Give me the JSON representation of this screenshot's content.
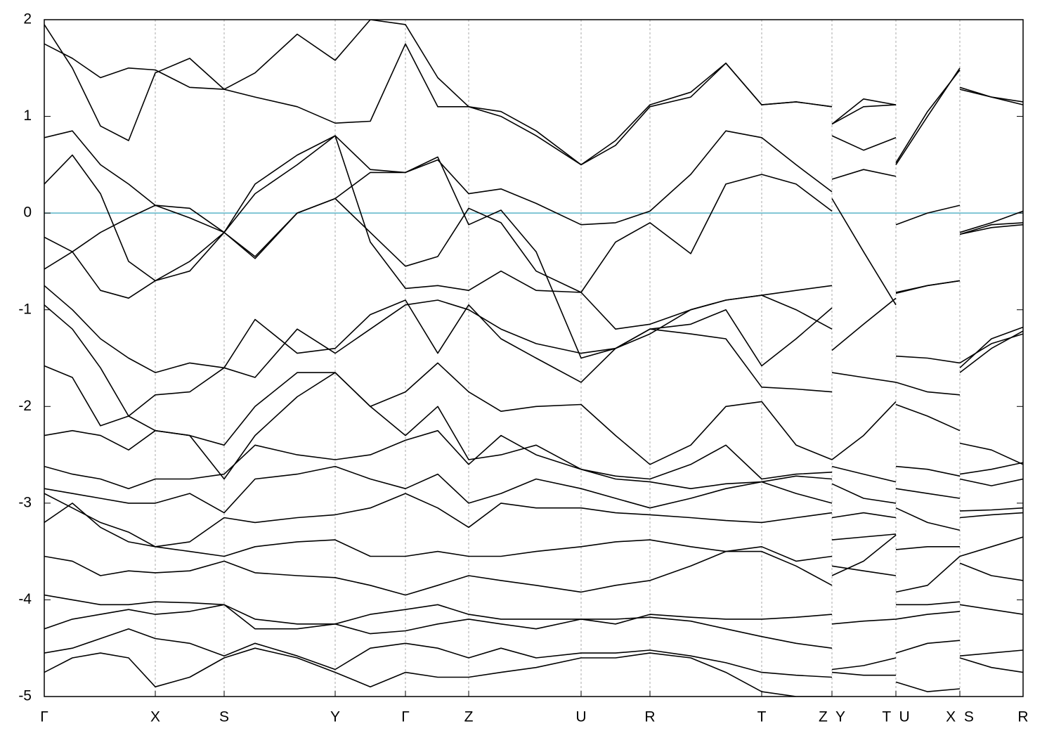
{
  "chart_data": {
    "type": "line",
    "line_color": "#000000",
    "fermi_level": 0,
    "fermi_color": "#5ab4c8",
    "xlim": [
      0,
      1393
    ],
    "ylim": [
      -5,
      2
    ],
    "yticks": [
      -5,
      -4,
      -3,
      -2,
      -1,
      0,
      1,
      2
    ],
    "xticks": [
      {
        "value": 0,
        "label": "Γ"
      },
      {
        "value": 158,
        "label": "X"
      },
      {
        "value": 256,
        "label": "S"
      },
      {
        "value": 414,
        "label": "Y"
      },
      {
        "value": 514,
        "label": "Γ"
      },
      {
        "value": 604,
        "label": "Z"
      },
      {
        "value": 764,
        "label": "U"
      },
      {
        "value": 862,
        "label": "R"
      },
      {
        "value": 1021,
        "label": "T"
      },
      {
        "value": 1121,
        "label": "Z  Y"
      },
      {
        "value": 1212,
        "label": "T  U"
      },
      {
        "value": 1303,
        "label": "X  S"
      },
      {
        "value": 1393,
        "label": "R"
      }
    ],
    "grid": true,
    "x": [
      0,
      40,
      80,
      120,
      158,
      207,
      256,
      300,
      360,
      414,
      464,
      514,
      560,
      604,
      650,
      700,
      764,
      813,
      862,
      920,
      970,
      1021,
      1070,
      1121,
      1121,
      1121,
      1166,
      1212,
      1212,
      1212,
      1257,
      1303,
      1303,
      1303,
      1348,
      1393
    ],
    "series": [
      {
        "values": [
          1.95,
          1.5,
          0.9,
          0.75,
          1.45,
          1.6,
          1.28,
          1.2,
          1.1,
          0.93,
          0.95,
          1.75,
          1.1,
          1.1,
          1.05,
          0.85,
          0.5,
          0.75,
          1.12,
          1.25,
          1.55,
          1.12,
          1.15,
          1.1,
          null,
          0.92,
          1.18,
          1.12,
          null,
          0.5,
          1.0,
          1.5,
          null,
          1.28,
          1.2,
          1.15
        ]
      },
      {
        "values": [
          1.75,
          1.6,
          1.4,
          1.5,
          1.48,
          1.3,
          1.28,
          1.45,
          1.85,
          1.58,
          2.0,
          1.95,
          1.4,
          1.1,
          1.0,
          0.8,
          0.5,
          0.7,
          1.1,
          1.2,
          1.55,
          1.12,
          1.15,
          1.1,
          null,
          0.92,
          1.1,
          1.12,
          null,
          0.52,
          1.05,
          1.48,
          null,
          1.3,
          1.2,
          1.12
        ]
      },
      {
        "values": [
          0.78,
          0.85,
          0.5,
          0.3,
          0.08,
          -0.05,
          -0.2,
          0.2,
          0.5,
          0.8,
          0.45,
          0.42,
          0.55,
          0.2,
          0.25,
          0.1,
          -0.12,
          -0.1,
          0.02,
          0.4,
          0.85,
          0.78,
          0.5,
          0.22,
          null,
          0.8,
          0.65,
          0.78,
          null,
          -0.12,
          0.0,
          0.08,
          null,
          -0.2,
          -0.1,
          0.02
        ]
      },
      {
        "values": [
          -0.58,
          -0.4,
          -0.2,
          -0.05,
          0.08,
          0.05,
          -0.2,
          -0.47,
          0.0,
          0.15,
          -0.2,
          -0.55,
          -0.45,
          0.05,
          -0.1,
          -0.6,
          -0.82,
          -0.3,
          -0.1,
          -0.42,
          0.3,
          0.4,
          0.3,
          0.02,
          null,
          0.15,
          -0.4,
          -0.95,
          null,
          -0.82,
          -0.75,
          -0.7,
          null,
          -0.22,
          -0.15,
          -0.12
        ]
      },
      {
        "values": [
          0.3,
          0.6,
          0.2,
          -0.5,
          -0.7,
          -0.5,
          -0.2,
          0.3,
          0.6,
          0.8,
          -0.3,
          -0.78,
          -0.75,
          -0.8,
          -0.6,
          -0.8,
          -0.82,
          -1.2,
          -1.15,
          -1.0,
          -0.9,
          -0.85,
          -0.8,
          -0.75,
          null,
          0.35,
          0.45,
          0.38,
          null,
          -0.83,
          -0.75,
          -0.7,
          null,
          -0.22,
          -0.12,
          -0.1
        ]
      },
      {
        "values": [
          -0.25,
          -0.4,
          -0.8,
          -0.88,
          -0.7,
          -0.6,
          -0.2,
          -0.45,
          0.0,
          0.15,
          0.42,
          0.42,
          0.58,
          -0.12,
          0.03,
          -0.4,
          -1.5,
          -1.4,
          -1.2,
          -1.15,
          -1.0,
          -1.58,
          -1.3,
          -0.98,
          null,
          -1.42,
          -1.15,
          -0.88,
          null,
          -1.48,
          -1.5,
          -1.55,
          null,
          -1.6,
          -1.3,
          -1.18
        ]
      },
      {
        "values": [
          -0.75,
          -1.0,
          -1.3,
          -1.5,
          -1.65,
          -1.55,
          -1.6,
          -1.7,
          -1.2,
          -1.45,
          -1.2,
          -0.95,
          -0.9,
          -1.0,
          -1.2,
          -1.35,
          -1.45,
          -1.4,
          -1.25,
          -1.0,
          -0.9,
          -0.85,
          -1.0,
          -1.2,
          null,
          -1.65,
          -1.7,
          -1.75,
          null,
          -1.75,
          -1.85,
          -1.88,
          null,
          -1.65,
          -1.4,
          -1.22
        ]
      },
      {
        "values": [
          -0.95,
          -1.2,
          -1.6,
          -2.1,
          -1.88,
          -1.85,
          -1.6,
          -1.1,
          -1.45,
          -1.4,
          -1.05,
          -0.9,
          -1.45,
          -0.95,
          -1.3,
          -1.5,
          -1.75,
          -1.4,
          -1.2,
          -1.25,
          -1.3,
          -1.8,
          -1.82,
          -1.85,
          null,
          -2.55,
          -2.3,
          -1.95,
          null,
          -1.98,
          -2.1,
          -2.25,
          null,
          -1.55,
          -1.35,
          -1.25
        ]
      },
      {
        "values": [
          -1.58,
          -1.7,
          -2.2,
          -2.1,
          -2.25,
          -2.3,
          -2.4,
          -2.0,
          -1.65,
          -1.65,
          -2.0,
          -1.85,
          -1.55,
          -1.85,
          -2.05,
          -2.0,
          -1.98,
          -2.3,
          -2.6,
          -2.4,
          -2.0,
          -1.95,
          -2.4,
          -2.55,
          null,
          -2.62,
          -2.7,
          -2.78,
          null,
          -2.62,
          -2.65,
          -2.72,
          null,
          -2.38,
          -2.45,
          -2.6
        ]
      },
      {
        "values": [
          -2.3,
          -2.25,
          -2.3,
          -2.45,
          -2.25,
          -2.3,
          -2.75,
          -2.3,
          -1.9,
          -1.65,
          -2.0,
          -2.3,
          -2.0,
          -2.55,
          -2.5,
          -2.4,
          -2.65,
          -2.72,
          -2.75,
          -2.6,
          -2.4,
          -2.75,
          -2.7,
          -2.68,
          null,
          -2.8,
          -2.95,
          -3.0,
          null,
          -2.85,
          -2.9,
          -2.95,
          null,
          -2.7,
          -2.65,
          -2.58
        ]
      },
      {
        "values": [
          -2.62,
          -2.7,
          -2.75,
          -2.85,
          -2.75,
          -2.75,
          -2.7,
          -2.4,
          -2.5,
          -2.55,
          -2.5,
          -2.35,
          -2.25,
          -2.6,
          -2.3,
          -2.5,
          -2.65,
          -2.75,
          -2.78,
          -2.85,
          -2.8,
          -2.78,
          -2.72,
          -2.75,
          null,
          -3.15,
          -3.1,
          -3.15,
          null,
          -3.05,
          -3.2,
          -3.28,
          null,
          -2.75,
          -2.82,
          -2.75
        ]
      },
      {
        "values": [
          -2.85,
          -2.9,
          -2.95,
          -3.0,
          -3.0,
          -2.9,
          -3.1,
          -2.75,
          -2.7,
          -2.62,
          -2.75,
          -2.85,
          -2.7,
          -3.0,
          -2.9,
          -2.75,
          -2.85,
          -2.95,
          -3.05,
          -2.95,
          -2.85,
          -2.78,
          -2.9,
          -3.0,
          null,
          -3.38,
          -3.35,
          -3.32,
          null,
          -3.48,
          -3.45,
          -3.45,
          null,
          -3.08,
          -3.07,
          -3.05
        ]
      },
      {
        "values": [
          -2.9,
          -3.05,
          -3.2,
          -3.3,
          -3.45,
          -3.4,
          -3.15,
          -3.2,
          -3.15,
          -3.12,
          -3.05,
          -2.9,
          -3.05,
          -3.25,
          -3.0,
          -3.05,
          -3.05,
          -3.1,
          -3.12,
          -3.15,
          -3.18,
          -3.2,
          -3.15,
          -3.1,
          null,
          -3.65,
          -3.7,
          -3.75,
          null,
          -3.92,
          -3.85,
          -3.55,
          null,
          -3.15,
          -3.12,
          -3.1
        ]
      },
      {
        "values": [
          -3.2,
          -3.0,
          -3.25,
          -3.4,
          -3.45,
          -3.5,
          -3.55,
          -3.45,
          -3.4,
          -3.38,
          -3.55,
          -3.55,
          -3.5,
          -3.55,
          -3.55,
          -3.5,
          -3.45,
          -3.4,
          -3.38,
          -3.45,
          -3.5,
          -3.45,
          -3.6,
          -3.55,
          null,
          -3.75,
          -3.6,
          -3.33,
          null,
          -4.05,
          -4.05,
          -4.02,
          null,
          -3.55,
          -3.45,
          -3.35
        ]
      },
      {
        "values": [
          -3.55,
          -3.6,
          -3.75,
          -3.7,
          -3.72,
          -3.7,
          -3.6,
          -3.72,
          -3.75,
          -3.77,
          -3.85,
          -3.95,
          -3.85,
          -3.75,
          -3.8,
          -3.85,
          -3.92,
          -3.85,
          -3.8,
          -3.65,
          -3.5,
          -3.5,
          -3.65,
          -3.85,
          null,
          -4.25,
          -4.22,
          -4.2,
          null,
          -4.2,
          -4.15,
          -4.12,
          null,
          -3.62,
          -3.75,
          -3.8
        ]
      },
      {
        "values": [
          -3.95,
          -4.0,
          -4.05,
          -4.05,
          -4.02,
          -4.03,
          -4.05,
          -4.2,
          -4.25,
          -4.25,
          -4.15,
          -4.1,
          -4.05,
          -4.15,
          -4.2,
          -4.2,
          -4.2,
          -4.25,
          -4.15,
          -4.18,
          -4.2,
          -4.2,
          -4.18,
          -4.15,
          null,
          -4.72,
          -4.68,
          -4.6,
          null,
          -4.55,
          -4.45,
          -4.42,
          null,
          -4.05,
          -4.1,
          -4.15
        ]
      },
      {
        "values": [
          -4.3,
          -4.2,
          -4.15,
          -4.1,
          -4.15,
          -4.12,
          -4.05,
          -4.3,
          -4.3,
          -4.25,
          -4.35,
          -4.32,
          -4.25,
          -4.2,
          -4.25,
          -4.3,
          -4.2,
          -4.2,
          -4.18,
          -4.22,
          -4.3,
          -4.38,
          -4.45,
          -4.5,
          null,
          -4.75,
          -4.78,
          -4.78,
          null,
          -4.85,
          -4.95,
          -4.92,
          null,
          -4.58,
          -4.55,
          -4.52
        ]
      },
      {
        "values": [
          -4.55,
          -4.5,
          -4.4,
          -4.3,
          -4.4,
          -4.45,
          -4.58,
          -4.45,
          -4.58,
          -4.72,
          -4.5,
          -4.45,
          -4.5,
          -4.6,
          -4.5,
          -4.6,
          -4.55,
          -4.55,
          -4.52,
          -4.58,
          -4.65,
          -4.75,
          -4.78,
          -4.8,
          null,
          null,
          null,
          null,
          null,
          null,
          null,
          null,
          null,
          -4.6,
          -4.7,
          -4.75
        ]
      },
      {
        "values": [
          -4.75,
          -4.6,
          -4.55,
          -4.6,
          -4.9,
          -4.8,
          -4.6,
          -4.5,
          -4.6,
          -4.75,
          -4.9,
          -4.75,
          -4.8,
          -4.8,
          -4.75,
          -4.7,
          -4.6,
          -4.6,
          -4.55,
          -4.6,
          -4.75,
          -4.95,
          -5.0,
          -5.0,
          null,
          null,
          null,
          null,
          null,
          null,
          null,
          null,
          null,
          null,
          null,
          null
        ]
      }
    ]
  }
}
